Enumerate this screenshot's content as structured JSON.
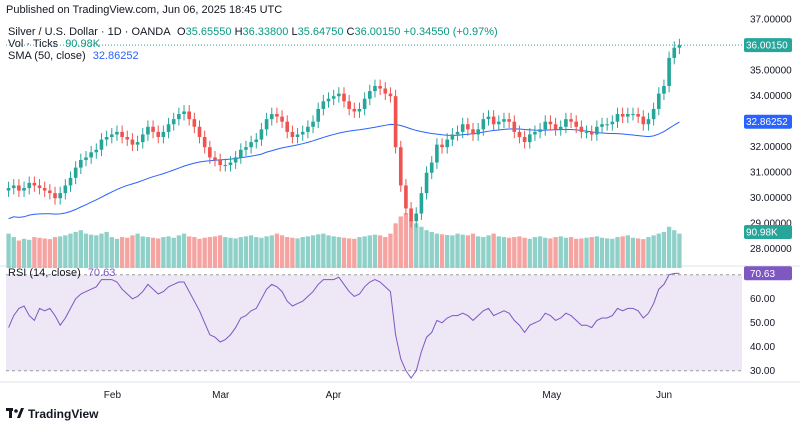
{
  "published": "Published on TradingView.com, Jun 06, 2025 18:45 UTC",
  "legend": {
    "symbol": "Silver / U.S. Dollar · 1D · OANDA",
    "o_label": "O",
    "o": "35.65550",
    "h_label": "H",
    "h": "36.33800",
    "l_label": "L",
    "l": "35.64750",
    "c_label": "C",
    "c": "36.00150",
    "change": "+0.34550 (+0.97%)",
    "vol_label": "Vol · Ticks",
    "vol": "90.98K",
    "sma_label": "SMA (50, close)",
    "sma": "32.86252"
  },
  "rsi_label": "RSI (14, close)",
  "rsi_value": "70.63",
  "brand": "TradingView",
  "colors": {
    "up": "#26a69a",
    "down": "#ef5350",
    "vol_up": "#8fd1c9",
    "vol_down": "#f5a4a1",
    "sma": "#2962ff",
    "rsi_line": "#7e57c2",
    "rsi_band": "#ede7f6",
    "price_tag_bg": "#26a69a",
    "sma_tag_bg": "#2962ff",
    "rsi_tag_bg": "#7e57c2"
  },
  "chart_data": [
    {
      "type": "candlestick",
      "title": "Silver / U.S. Dollar · 1D · OANDA",
      "y_ticks": [
        "28.00000",
        "29.00000",
        "30.00000",
        "31.00000",
        "32.00000",
        "33.00000",
        "34.00000",
        "35.00000",
        "36.00000",
        "37.00000"
      ],
      "ylim": [
        27.5,
        37.3
      ],
      "x_ticks": [
        "Feb",
        "Mar",
        "Apr",
        "May",
        "Jun"
      ],
      "last_price": "36.00150",
      "sma_last": "32.86252",
      "volume_last": "90.98K",
      "closes": [
        30.4,
        30.5,
        30.3,
        30.4,
        30.6,
        30.5,
        30.4,
        30.3,
        30.2,
        30.0,
        30.2,
        30.5,
        30.8,
        31.2,
        31.5,
        31.6,
        31.8,
        31.9,
        32.3,
        32.4,
        32.5,
        32.6,
        32.4,
        32.3,
        32.1,
        32.2,
        32.5,
        32.8,
        32.6,
        32.4,
        32.6,
        32.9,
        33.1,
        33.3,
        33.4,
        33.1,
        32.8,
        32.4,
        32.0,
        31.6,
        31.5,
        31.3,
        31.3,
        31.4,
        31.6,
        31.9,
        32.0,
        32.2,
        32.3,
        32.7,
        33.1,
        33.3,
        33.2,
        33.0,
        32.6,
        32.4,
        32.5,
        32.6,
        32.8,
        33.0,
        33.5,
        33.8,
        33.9,
        34.0,
        34.1,
        33.8,
        33.5,
        33.4,
        33.5,
        33.9,
        34.2,
        34.4,
        34.3,
        34.1,
        34.0,
        32.0,
        30.5,
        29.6,
        29.1,
        29.4,
        30.2,
        31.0,
        31.4,
        32.1,
        32.0,
        32.3,
        32.5,
        32.6,
        32.9,
        32.7,
        32.5,
        32.7,
        33.1,
        33.2,
        32.9,
        33.0,
        33.1,
        33.0,
        32.6,
        32.4,
        32.2,
        32.5,
        32.6,
        32.7,
        33.0,
        32.9,
        32.7,
        32.8,
        33.1,
        33.0,
        32.8,
        32.6,
        32.6,
        32.5,
        32.8,
        32.9,
        32.9,
        33.0,
        33.3,
        33.2,
        33.3,
        33.3,
        33.2,
        32.9,
        33.1,
        33.5,
        34.1,
        34.4,
        35.5,
        35.9,
        36.0
      ],
      "volume": [
        1,
        0.9,
        0.8,
        0.85,
        0.82,
        0.9,
        0.88,
        0.86,
        0.84,
        0.9,
        0.92,
        0.95,
        1,
        1.05,
        1.1,
        1,
        0.97,
        0.95,
        1,
        1.05,
        0.9,
        0.85,
        0.9,
        0.88,
        0.95,
        1,
        0.92,
        0.9,
        0.88,
        0.86,
        0.9,
        0.92,
        0.88,
        0.95,
        1,
        0.92,
        0.9,
        0.85,
        0.88,
        0.9,
        0.92,
        0.95,
        0.9,
        0.88,
        0.86,
        0.9,
        0.92,
        0.95,
        0.9,
        0.88,
        0.92,
        0.95,
        1,
        0.95,
        0.9,
        0.88,
        0.86,
        0.9,
        0.92,
        0.95,
        0.98,
        1,
        0.95,
        0.92,
        0.9,
        0.88,
        0.86,
        0.85,
        0.9,
        0.92,
        0.95,
        0.97,
        0.95,
        0.9,
        1,
        1.3,
        1.5,
        1.6,
        1.4,
        1.3,
        1.2,
        1.1,
        1.05,
        1,
        0.98,
        0.96,
        0.95,
        1,
        0.97,
        0.95,
        1,
        0.92,
        0.9,
        0.95,
        1,
        0.92,
        0.9,
        0.88,
        0.9,
        0.92,
        0.88,
        0.85,
        0.9,
        0.92,
        0.88,
        0.86,
        0.9,
        0.92,
        0.88,
        0.9,
        0.85,
        0.86,
        0.88,
        0.9,
        0.92,
        0.88,
        0.86,
        0.85,
        0.9,
        0.92,
        0.95,
        0.88,
        0.86,
        0.84,
        0.9,
        0.95,
        1,
        1.05,
        1.2,
        1.1,
        1
      ]
    },
    {
      "type": "line",
      "title": "RSI (14, close)",
      "y_ticks": [
        "30.00",
        "40.00",
        "50.00",
        "60.00"
      ],
      "ylim": [
        27,
        72
      ],
      "band": [
        30,
        70
      ],
      "last": 70.63,
      "values": [
        48,
        53,
        56,
        57,
        53,
        51,
        56,
        55,
        56,
        53,
        49,
        52,
        56,
        60,
        62,
        63,
        64,
        65,
        68,
        68,
        68,
        67,
        64,
        62,
        60,
        61,
        63,
        66,
        64,
        62,
        63,
        65,
        66,
        67,
        67,
        63,
        59,
        55,
        50,
        45,
        44,
        42,
        43,
        45,
        48,
        52,
        53,
        55,
        56,
        60,
        64,
        66,
        65,
        63,
        59,
        57,
        58,
        59,
        61,
        63,
        66,
        68,
        68,
        68,
        69,
        66,
        63,
        61,
        62,
        65,
        67,
        68,
        67,
        65,
        63,
        45,
        35,
        30,
        27,
        30,
        38,
        44,
        46,
        51,
        50,
        52,
        53,
        53,
        54,
        53,
        51,
        53,
        55,
        56,
        53,
        54,
        55,
        54,
        51,
        49,
        46,
        49,
        50,
        51,
        54,
        53,
        51,
        52,
        54,
        53,
        51,
        49,
        49,
        48,
        51,
        52,
        52,
        53,
        56,
        55,
        56,
        56,
        55,
        52,
        54,
        58,
        64,
        66,
        70,
        70.6,
        70.6
      ]
    }
  ]
}
